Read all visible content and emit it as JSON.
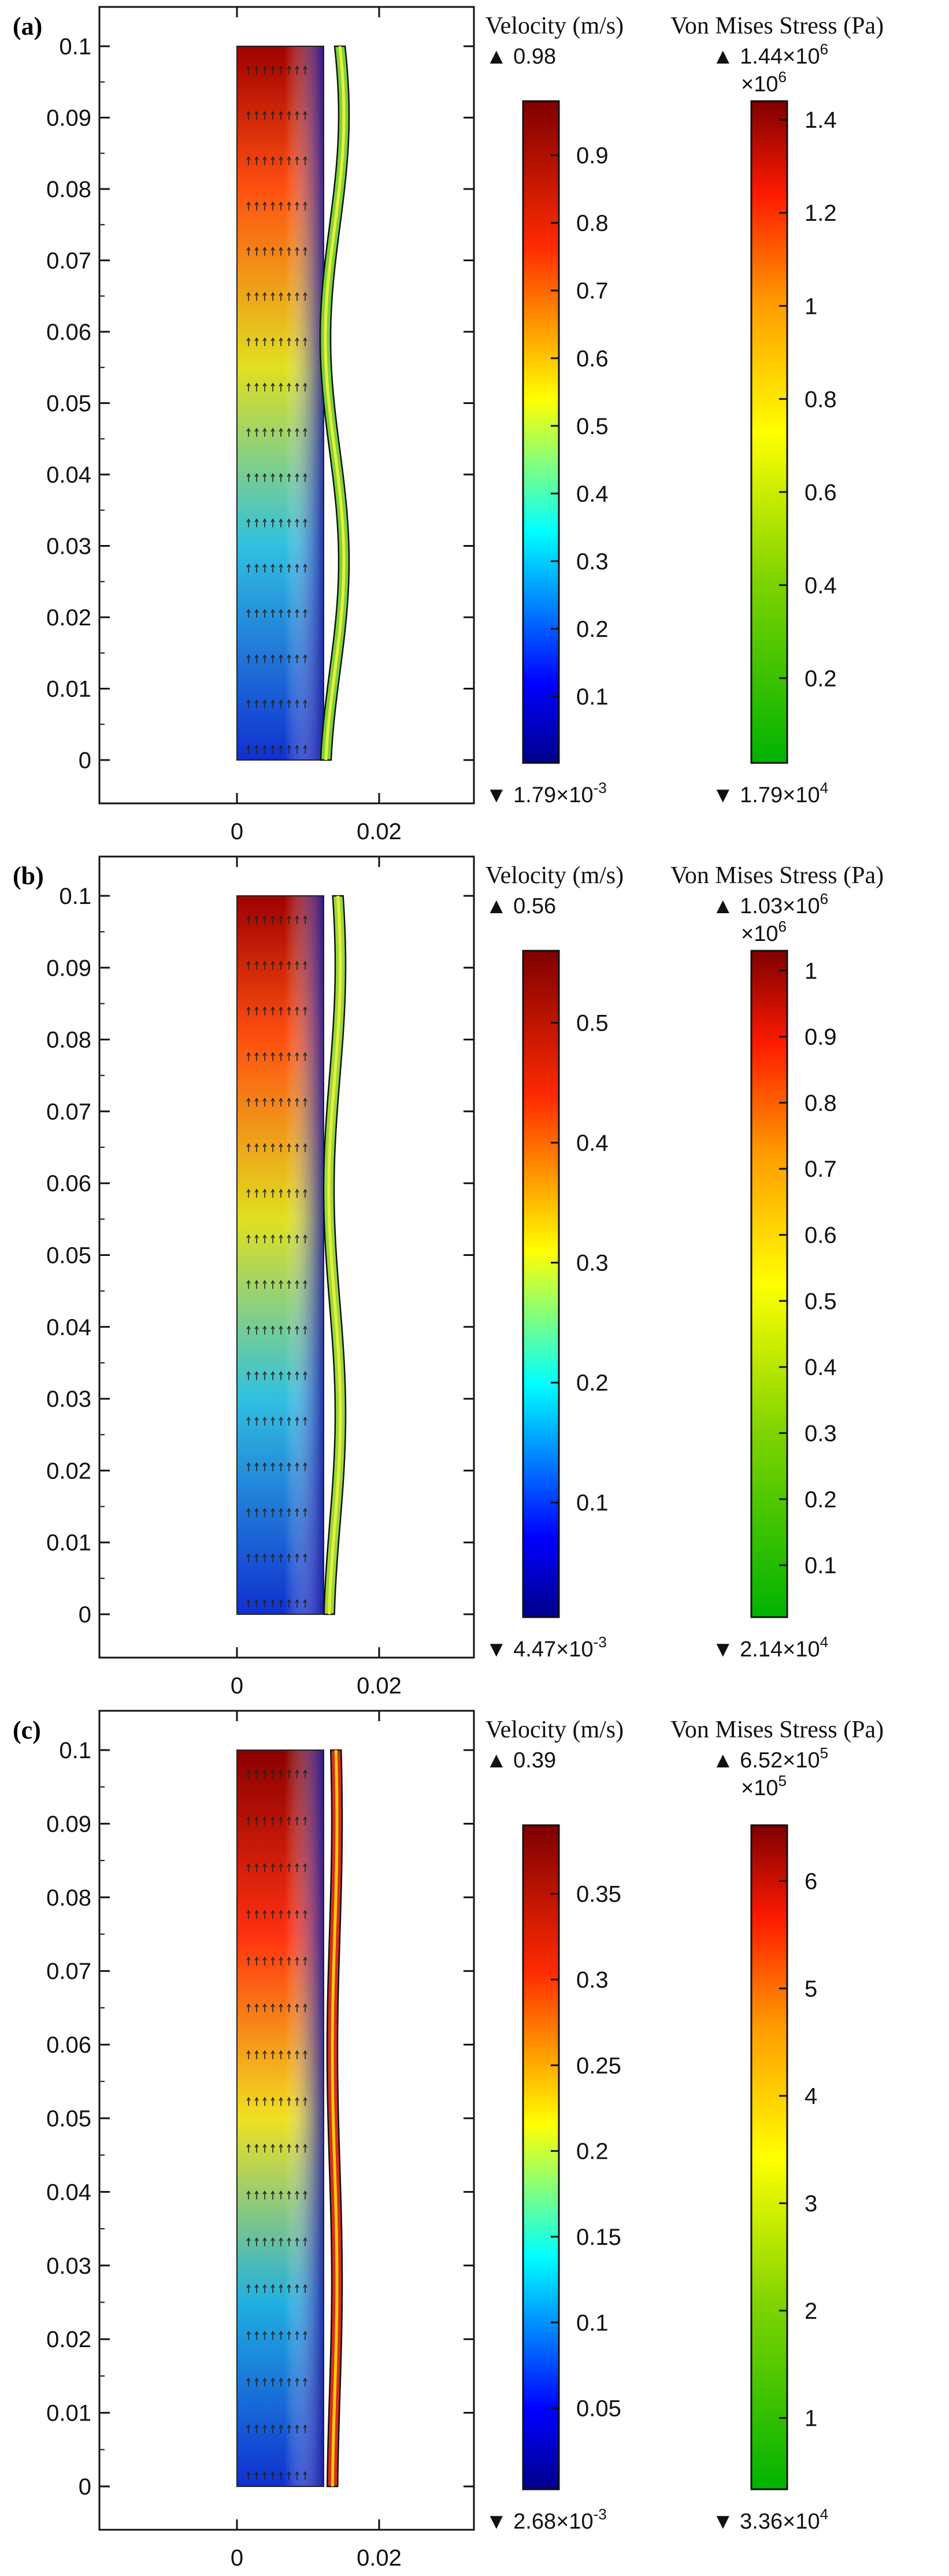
{
  "panels": [
    {
      "label": "(a)",
      "y_ticks": [
        "0.1",
        "0.09",
        "0.08",
        "0.07",
        "0.06",
        "0.05",
        "0.04",
        "0.03",
        "0.02",
        "0.01",
        "0"
      ],
      "x_ticks": [
        "0",
        "0.02"
      ],
      "velocity": {
        "title": "Velocity (m/s)",
        "max_text": "0.98",
        "min_text": "1.79×10",
        "min_exp": "-3",
        "ticks": [
          "0.9",
          "0.8",
          "0.7",
          "0.6",
          "0.5",
          "0.4",
          "0.3",
          "0.2",
          "0.1"
        ],
        "tick_values": [
          0.9,
          0.8,
          0.7,
          0.6,
          0.5,
          0.4,
          0.3,
          0.2,
          0.1
        ],
        "range": [
          0.00179,
          0.98
        ]
      },
      "stress": {
        "title": "Von Mises Stress (Pa)",
        "max_text": "1.44×10",
        "max_exp": "6",
        "multiplier": "×10",
        "multiplier_exp": "6",
        "min_text": "1.79×10",
        "min_exp": "4",
        "ticks": [
          "1.4",
          "1.2",
          "1",
          "0.8",
          "0.6",
          "0.4",
          "0.2"
        ],
        "tick_values": [
          1.4,
          1.2,
          1.0,
          0.8,
          0.6,
          0.4,
          0.2
        ],
        "range": [
          0.0179,
          1.44
        ]
      },
      "wall_color": "#7dd33a"
    },
    {
      "label": "(b)",
      "y_ticks": [
        "0.1",
        "0.09",
        "0.08",
        "0.07",
        "0.06",
        "0.05",
        "0.04",
        "0.03",
        "0.02",
        "0.01",
        "0"
      ],
      "x_ticks": [
        "0",
        "0.02"
      ],
      "velocity": {
        "title": "Velocity (m/s)",
        "max_text": "0.56",
        "min_text": "4.47×10",
        "min_exp": "-3",
        "ticks": [
          "0.5",
          "0.4",
          "0.3",
          "0.2",
          "0.1"
        ],
        "tick_values": [
          0.5,
          0.4,
          0.3,
          0.2,
          0.1
        ],
        "range": [
          0.00447,
          0.56
        ]
      },
      "stress": {
        "title": "Von Mises Stress (Pa)",
        "max_text": "1.03×10",
        "max_exp": "6",
        "multiplier": "×10",
        "multiplier_exp": "6",
        "min_text": "2.14×10",
        "min_exp": "4",
        "ticks": [
          "1",
          "0.9",
          "0.8",
          "0.7",
          "0.6",
          "0.5",
          "0.4",
          "0.3",
          "0.2",
          "0.1"
        ],
        "tick_values": [
          1.0,
          0.9,
          0.8,
          0.7,
          0.6,
          0.5,
          0.4,
          0.3,
          0.2,
          0.1
        ],
        "range": [
          0.0214,
          1.03
        ]
      },
      "wall_color": "#9ad93a"
    },
    {
      "label": "(c)",
      "y_ticks": [
        "0.1",
        "0.09",
        "0.08",
        "0.07",
        "0.06",
        "0.05",
        "0.04",
        "0.03",
        "0.02",
        "0.01",
        "0"
      ],
      "x_ticks": [
        "0",
        "0.02"
      ],
      "velocity": {
        "title": "Velocity (m/s)",
        "max_text": "0.39",
        "min_text": "2.68×10",
        "min_exp": "-3",
        "ticks": [
          "0.35",
          "0.3",
          "0.25",
          "0.2",
          "0.15",
          "0.1",
          "0.05"
        ],
        "tick_values": [
          0.35,
          0.3,
          0.25,
          0.2,
          0.15,
          0.1,
          0.05
        ],
        "range": [
          0.00268,
          0.39
        ]
      },
      "stress": {
        "title": "Von Mises Stress (Pa)",
        "max_text": "6.52×10",
        "max_exp": "5",
        "multiplier": "×10",
        "multiplier_exp": "5",
        "min_text": "3.36×10",
        "min_exp": "4",
        "ticks": [
          "6",
          "5",
          "4",
          "3",
          "2",
          "1"
        ],
        "tick_values": [
          6,
          5,
          4,
          3,
          2,
          1
        ],
        "range": [
          0.336,
          6.52
        ]
      },
      "wall_color": "#d6301e"
    }
  ]
}
